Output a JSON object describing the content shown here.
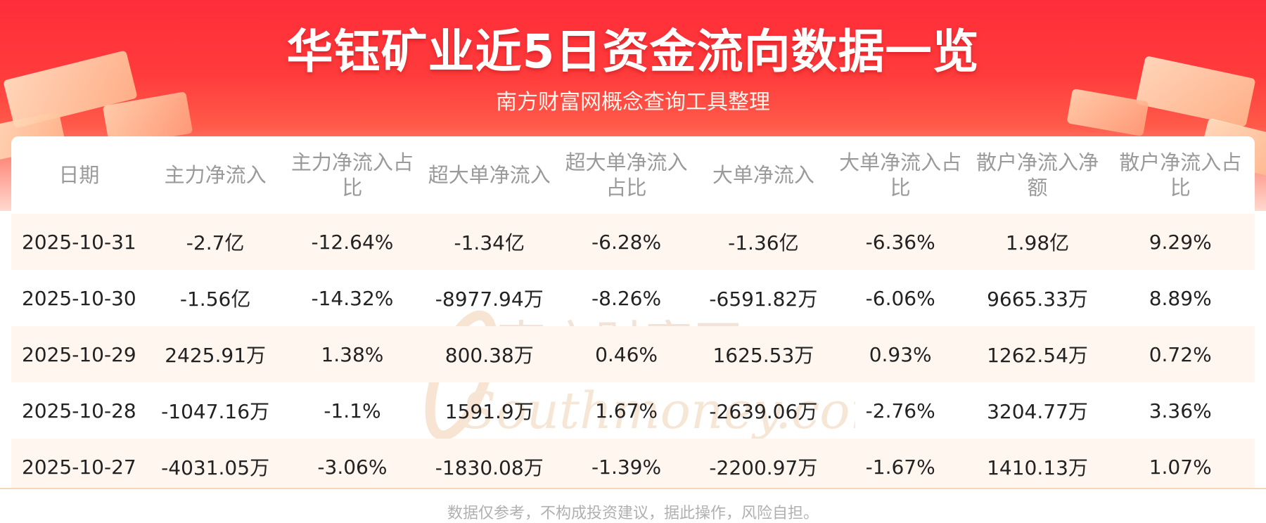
{
  "header": {
    "title": "华钰矿业近5日资金流向数据一览",
    "subtitle": "南方财富网概念查询工具整理"
  },
  "table": {
    "columns": [
      "日期",
      "主力净流入",
      "主力净流入占比",
      "超大单净流入",
      "超大单净流入占比",
      "大单净流入",
      "大单净流入占比",
      "散户净流入净额",
      "散户净流入占比"
    ],
    "rows": [
      [
        "2025-10-31",
        "-2.7亿",
        "-12.64%",
        "-1.34亿",
        "-6.28%",
        "-1.36亿",
        "-6.36%",
        "1.98亿",
        "9.29%"
      ],
      [
        "2025-10-30",
        "-1.56亿",
        "-14.32%",
        "-8977.94万",
        "-8.26%",
        "-6591.82万",
        "-6.06%",
        "9665.33万",
        "8.89%"
      ],
      [
        "2025-10-29",
        "2425.91万",
        "1.38%",
        "800.38万",
        "0.46%",
        "1625.53万",
        "0.93%",
        "1262.54万",
        "0.72%"
      ],
      [
        "2025-10-28",
        "-1047.16万",
        "-1.1%",
        "1591.9万",
        "1.67%",
        "-2639.06万",
        "-2.76%",
        "3204.77万",
        "3.36%"
      ],
      [
        "2025-10-27",
        "-4031.05万",
        "-3.06%",
        "-1830.08万",
        "-1.39%",
        "-2200.97万",
        "-1.67%",
        "1410.13万",
        "1.07%"
      ]
    ]
  },
  "watermark": {
    "cn": "南方财富网",
    "en": "Southmoney.com"
  },
  "footer": {
    "disclaimer": "数据仅参考，不构成投资建议，据此操作，风险自担。"
  },
  "colors": {
    "banner_red": "#ff2d3a",
    "stripe": "#fff7ef",
    "header_text": "#9a9a9a",
    "cell_text": "#222222"
  }
}
